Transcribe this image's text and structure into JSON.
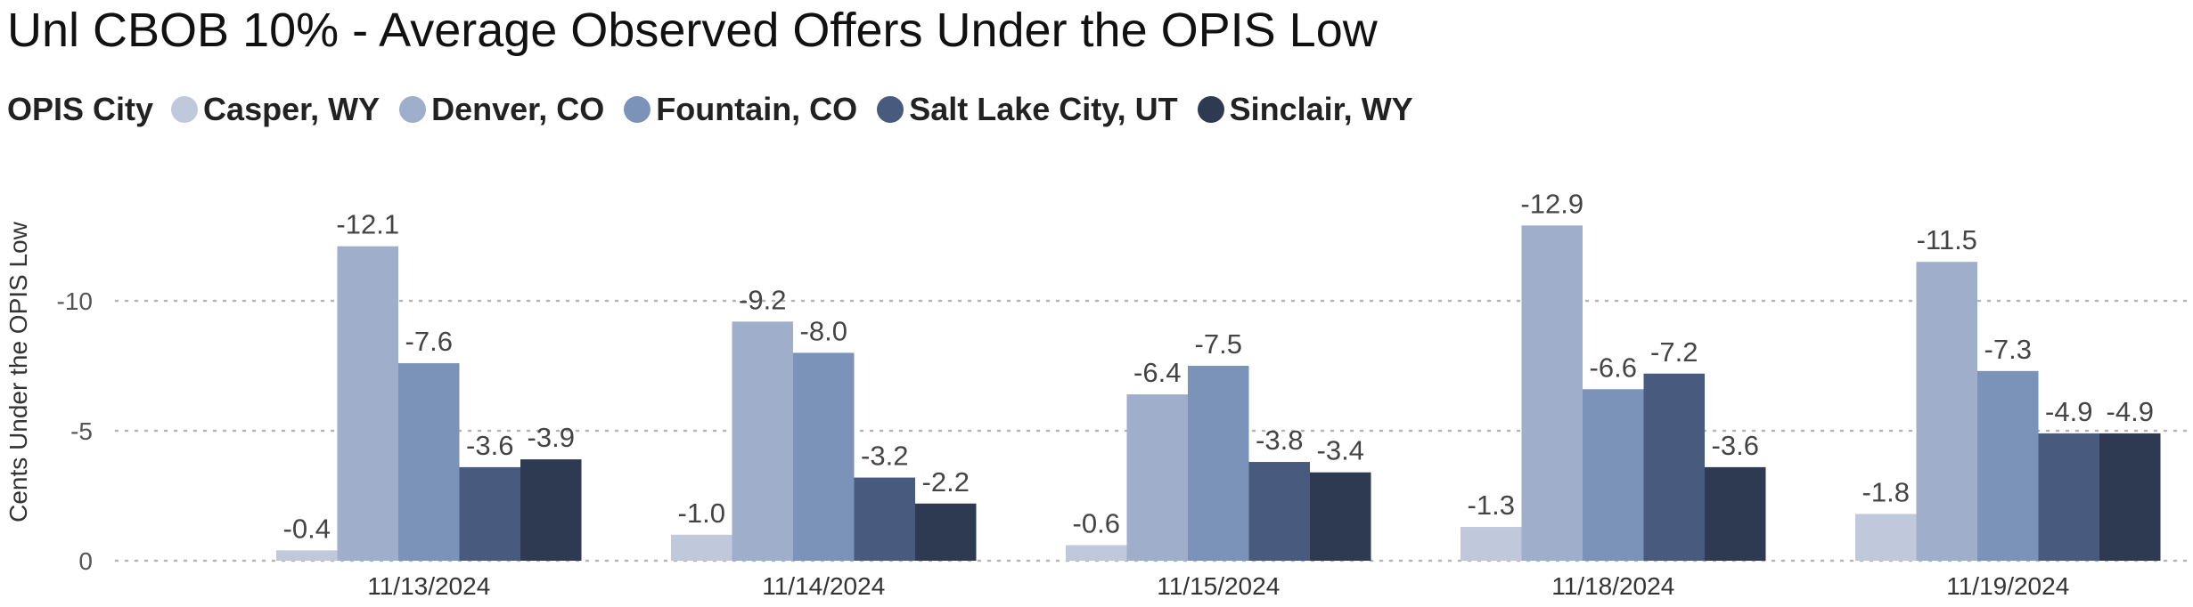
{
  "chart_data": {
    "type": "bar",
    "title": "Unl CBOB 10% - Average Observed Offers Under the OPIS Low",
    "legend_title": "OPIS City",
    "legend_position": "top-left",
    "ylabel": "Cents Under the OPIS Low",
    "xlabel": "",
    "ylim": [
      0,
      -14
    ],
    "yticks": [
      0,
      -5,
      -10
    ],
    "ytick_labels": [
      "0",
      "-5",
      "-10"
    ],
    "grid": true,
    "categories": [
      "11/13/2024",
      "11/14/2024",
      "11/15/2024",
      "11/18/2024",
      "11/19/2024"
    ],
    "series": [
      {
        "name": "Casper, WY",
        "color": "#c0c9dc",
        "values": [
          -0.4,
          -1.0,
          -0.6,
          -1.3,
          -1.8
        ],
        "labels": [
          "-0.4",
          "-1.0",
          "-0.6",
          "-1.3",
          "-1.8"
        ]
      },
      {
        "name": "Denver, CO",
        "color": "#9eaecb",
        "values": [
          -12.1,
          -9.2,
          -6.4,
          -12.9,
          -11.5
        ],
        "labels": [
          "-12.1",
          "-9.2",
          "-6.4",
          "-12.9",
          "-11.5"
        ]
      },
      {
        "name": "Fountain, CO",
        "color": "#7b93b8",
        "values": [
          -7.6,
          -8.0,
          -7.5,
          -6.6,
          -7.3
        ],
        "labels": [
          "-7.6",
          "-8.0",
          "-7.5",
          "-6.6",
          "-7.3"
        ]
      },
      {
        "name": "Salt Lake City, UT",
        "color": "#485a7e",
        "values": [
          -3.6,
          -3.2,
          -3.8,
          -7.2,
          -4.9
        ],
        "labels": [
          "-3.6",
          "-3.2",
          "-3.8",
          "-7.2",
          "-4.9"
        ]
      },
      {
        "name": "Sinclair, WY",
        "color": "#2e3a52",
        "values": [
          -3.9,
          -2.2,
          -3.4,
          -3.6,
          -4.9
        ],
        "labels": [
          "-3.9",
          "-2.2",
          "-3.4",
          "-3.6",
          "-4.9"
        ]
      }
    ]
  }
}
